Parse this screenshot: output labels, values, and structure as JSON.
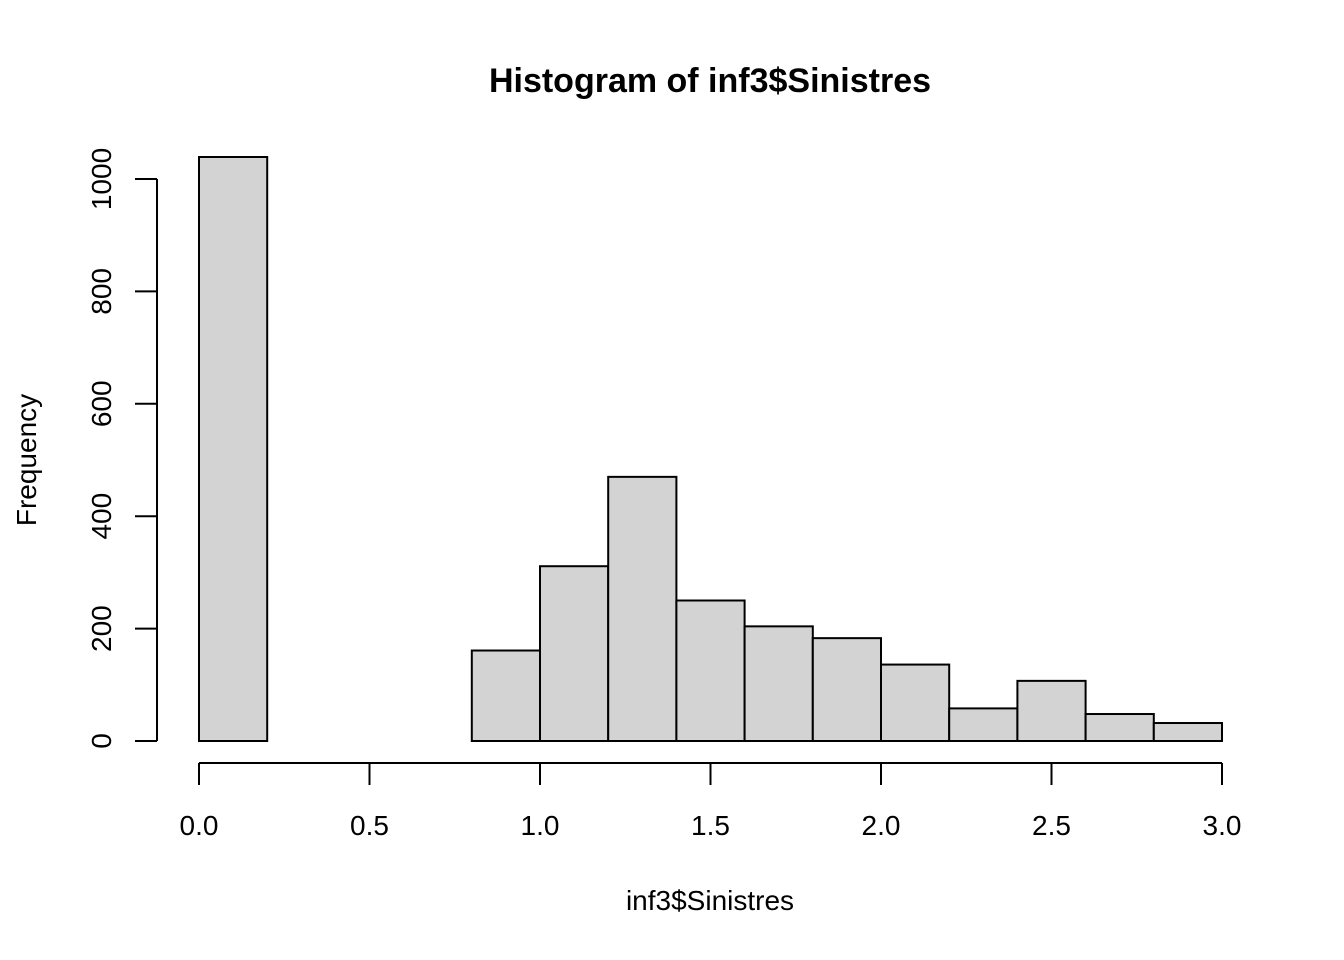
{
  "chart_data": {
    "type": "bar",
    "title": "Histogram of inf3$Sinistres",
    "xlabel": "inf3$Sinistres",
    "ylabel": "Frequency",
    "bins": [
      {
        "x0": 0.0,
        "x1": 0.2,
        "count": 1050
      },
      {
        "x0": 0.2,
        "x1": 0.4,
        "count": 0
      },
      {
        "x0": 0.4,
        "x1": 0.6,
        "count": 0
      },
      {
        "x0": 0.6,
        "x1": 0.8,
        "count": 0
      },
      {
        "x0": 0.8,
        "x1": 1.0,
        "count": 161
      },
      {
        "x0": 1.0,
        "x1": 1.2,
        "count": 311
      },
      {
        "x0": 1.2,
        "x1": 1.4,
        "count": 470
      },
      {
        "x0": 1.4,
        "x1": 1.6,
        "count": 250
      },
      {
        "x0": 1.6,
        "x1": 1.8,
        "count": 204
      },
      {
        "x0": 1.8,
        "x1": 2.0,
        "count": 183
      },
      {
        "x0": 2.0,
        "x1": 2.2,
        "count": 136
      },
      {
        "x0": 2.2,
        "x1": 2.4,
        "count": 58
      },
      {
        "x0": 2.4,
        "x1": 2.6,
        "count": 107
      },
      {
        "x0": 2.6,
        "x1": 2.8,
        "count": 48
      },
      {
        "x0": 2.8,
        "x1": 3.0,
        "count": 32
      }
    ],
    "xlim": [
      0,
      3
    ],
    "ylim": [
      0,
      1040
    ],
    "xticks": [
      0.0,
      0.5,
      1.0,
      1.5,
      2.0,
      2.5,
      3.0
    ],
    "xtick_labels": [
      "0.0",
      "0.5",
      "1.0",
      "1.5",
      "2.0",
      "2.5",
      "3.0"
    ],
    "yticks": [
      0,
      200,
      400,
      600,
      800,
      1000
    ],
    "ytick_labels": [
      "0",
      "200",
      "400",
      "600",
      "800",
      "1000"
    ],
    "grid": false,
    "colors": {
      "bar_fill": "#d3d3d3",
      "bar_stroke": "#000000"
    }
  }
}
